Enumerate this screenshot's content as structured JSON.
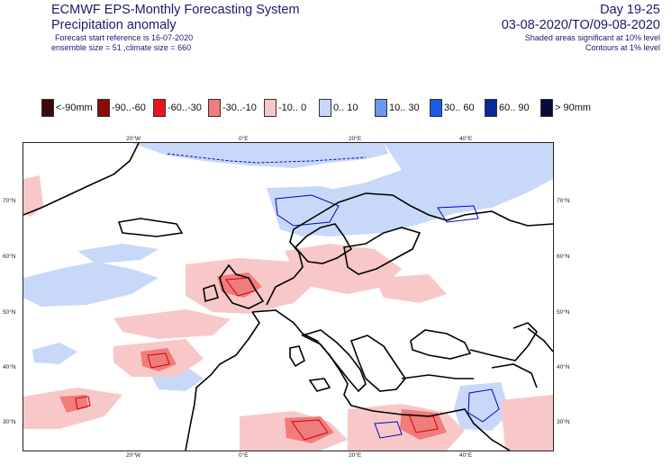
{
  "header": {
    "system_title": "ECMWF EPS-Monthly Forecasting System",
    "product_title": "Precipitation anomaly",
    "start_reference": "Forecast start reference is 16-07-2020",
    "ensemble_info": "ensemble size = 51  ,climate size = 660",
    "day_range": "Day 19-25",
    "date_range": "03-08-2020/TO/09-08-2020",
    "shaded_note": "Shaded areas significant at 10% level",
    "contour_note": "Contours at 1% level"
  },
  "legend": [
    {
      "label": "<-90mm",
      "color": "#3a0a0a"
    },
    {
      "label": "-90..-60",
      "color": "#8b0a0a"
    },
    {
      "label": "-60..-30",
      "color": "#e8141e"
    },
    {
      "label": "-30..-10",
      "color": "#f07c7c"
    },
    {
      "label": "-10..  0",
      "color": "#f8c8c8"
    },
    {
      "label": "0..  10",
      "color": "#c8d8f8"
    },
    {
      "label": "10..  30",
      "color": "#6c96f0"
    },
    {
      "label": "30..  60",
      "color": "#1a5ae6"
    },
    {
      "label": "60..  90",
      "color": "#0a2896"
    },
    {
      "label": ">  90mm",
      "color": "#0a0a3a"
    }
  ],
  "map": {
    "lon_ticks_top": [
      "20°W",
      "0°E",
      "20°E",
      "40°E"
    ],
    "lon_ticks_bottom": [
      "20°W",
      "0°E",
      "20°E",
      "40°E"
    ],
    "lat_ticks_left": [
      "70°N",
      "60°N",
      "50°N",
      "40°N",
      "30°N"
    ],
    "lat_ticks_right": [
      "70°N",
      "60°N",
      "50°N",
      "40°N",
      "30°N"
    ],
    "colors": {
      "coast": "#000000",
      "positive_contour": "#0000cc",
      "negative_contour": "#cc0000"
    }
  }
}
